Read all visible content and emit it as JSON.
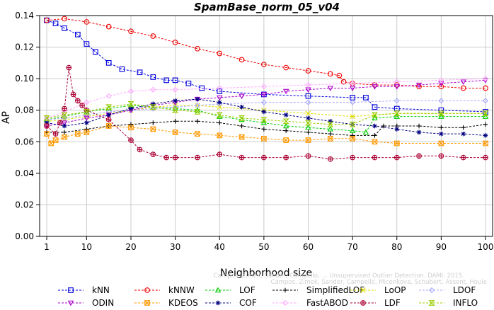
{
  "chart_data": {
    "type": "line",
    "title": "SpamBase_norm_05_v04",
    "xlabel": "Neighborhood size",
    "ylabel": "AP",
    "xlim": [
      1,
      100
    ],
    "ylim": [
      0,
      0.14
    ],
    "x_ticks": [
      1,
      10,
      20,
      30,
      40,
      50,
      60,
      70,
      80,
      90,
      100
    ],
    "y_ticks": [
      0.0,
      0.02,
      0.04,
      0.06,
      0.08,
      0.1,
      0.12,
      0.14
    ],
    "x_tick_labels": [
      "1",
      "10",
      "20",
      "30",
      "40",
      "50",
      "60",
      "70",
      "80",
      "90",
      "100"
    ],
    "y_tick_labels": [
      "0.00",
      "0.02",
      "0.04",
      "0.06",
      "0.08",
      "0.10",
      "0.12",
      "0.14"
    ],
    "legend_placement": "bottom",
    "credit_line_1": "Campos, Zimek, Sander, Campello, ... Unsupervised Outlier Detection. DAMI, 2015.",
    "credit_line_2": "Campos, Zimek, Sander, Campello, Micenkova, Schubert, Assent, Houle",
    "series": [
      {
        "name": "kNN",
        "color": "#0000dd",
        "marker": "square",
        "x": [
          1,
          3,
          5,
          8,
          10,
          12,
          15,
          18,
          22,
          25,
          28,
          30,
          33,
          36,
          40,
          50,
          60,
          70,
          73,
          75,
          80,
          90,
          100
        ],
        "y": [
          0.137,
          0.135,
          0.132,
          0.128,
          0.122,
          0.117,
          0.11,
          0.106,
          0.104,
          0.101,
          0.099,
          0.099,
          0.097,
          0.094,
          0.092,
          0.09,
          0.089,
          0.088,
          0.088,
          0.082,
          0.081,
          0.08,
          0.079
        ]
      },
      {
        "name": "kNNW",
        "color": "#ee0000",
        "marker": "circle",
        "x": [
          1,
          5,
          10,
          15,
          20,
          25,
          30,
          35,
          40,
          45,
          50,
          55,
          60,
          65,
          67,
          68,
          70,
          75,
          80,
          85,
          90,
          95,
          100
        ],
        "y": [
          0.137,
          0.138,
          0.136,
          0.133,
          0.13,
          0.127,
          0.123,
          0.119,
          0.116,
          0.112,
          0.109,
          0.107,
          0.105,
          0.103,
          0.102,
          0.098,
          0.097,
          0.096,
          0.096,
          0.095,
          0.095,
          0.094,
          0.094
        ]
      },
      {
        "name": "LOF",
        "color": "#00cc00",
        "marker": "triangle-up",
        "x": [
          1,
          5,
          10,
          15,
          20,
          25,
          30,
          35,
          40,
          45,
          50,
          55,
          60,
          65,
          70,
          73,
          75,
          80,
          90,
          100
        ],
        "y": [
          0.074,
          0.076,
          0.079,
          0.081,
          0.083,
          0.082,
          0.081,
          0.08,
          0.076,
          0.074,
          0.072,
          0.07,
          0.069,
          0.068,
          0.067,
          0.066,
          0.075,
          0.076,
          0.076,
          0.076
        ]
      },
      {
        "name": "SimplifiedLOF",
        "color": "#000000",
        "marker": "plus",
        "x": [
          1,
          5,
          10,
          15,
          20,
          25,
          30,
          35,
          40,
          45,
          50,
          55,
          60,
          65,
          70,
          75,
          77,
          80,
          85,
          90,
          95,
          100
        ],
        "y": [
          0.066,
          0.066,
          0.068,
          0.07,
          0.071,
          0.072,
          0.073,
          0.073,
          0.072,
          0.07,
          0.068,
          0.067,
          0.066,
          0.065,
          0.064,
          0.064,
          0.07,
          0.07,
          0.07,
          0.069,
          0.069,
          0.071
        ]
      },
      {
        "name": "LoOP",
        "color": "#dddd00",
        "marker": "cross",
        "x": [
          1,
          5,
          10,
          15,
          20,
          25,
          30,
          35,
          40,
          50,
          60,
          70,
          75,
          80,
          90,
          100
        ],
        "y": [
          0.073,
          0.074,
          0.076,
          0.078,
          0.08,
          0.082,
          0.083,
          0.083,
          0.082,
          0.08,
          0.078,
          0.076,
          0.077,
          0.078,
          0.078,
          0.078
        ]
      },
      {
        "name": "LDOF",
        "color": "#aaaaff",
        "marker": "diamond",
        "x": [
          1,
          5,
          10,
          15,
          20,
          25,
          30,
          35,
          40,
          50,
          60,
          70,
          80,
          90,
          100
        ],
        "y": [
          0.074,
          0.075,
          0.077,
          0.079,
          0.08,
          0.081,
          0.082,
          0.083,
          0.084,
          0.085,
          0.085,
          0.085,
          0.086,
          0.086,
          0.086
        ]
      },
      {
        "name": "ODIN",
        "color": "#aa00cc",
        "marker": "triangle-down",
        "x": [
          1,
          5,
          10,
          15,
          20,
          25,
          30,
          35,
          40,
          45,
          50,
          55,
          60,
          65,
          70,
          75,
          80,
          85,
          90,
          95,
          100
        ],
        "y": [
          0.07,
          0.072,
          0.075,
          0.077,
          0.08,
          0.083,
          0.085,
          0.087,
          0.088,
          0.089,
          0.09,
          0.092,
          0.093,
          0.094,
          0.094,
          0.095,
          0.095,
          0.096,
          0.097,
          0.098,
          0.099
        ]
      },
      {
        "name": "KDEOS",
        "color": "#ff9900",
        "marker": "square-x",
        "x": [
          1,
          2,
          3,
          5,
          8,
          10,
          15,
          20,
          25,
          30,
          35,
          40,
          45,
          50,
          55,
          60,
          65,
          70,
          75,
          80,
          90,
          100
        ],
        "y": [
          0.065,
          0.059,
          0.061,
          0.063,
          0.065,
          0.066,
          0.07,
          0.069,
          0.068,
          0.066,
          0.065,
          0.064,
          0.063,
          0.062,
          0.061,
          0.061,
          0.062,
          0.062,
          0.06,
          0.059,
          0.059,
          0.059
        ]
      },
      {
        "name": "COF",
        "color": "#000080",
        "marker": "asterisk",
        "x": [
          1,
          5,
          10,
          15,
          20,
          25,
          30,
          35,
          40,
          45,
          50,
          55,
          60,
          65,
          70,
          75,
          80,
          85,
          90,
          95,
          100
        ],
        "y": [
          0.072,
          0.07,
          0.072,
          0.077,
          0.081,
          0.084,
          0.086,
          0.087,
          0.085,
          0.082,
          0.079,
          0.077,
          0.075,
          0.073,
          0.071,
          0.07,
          0.068,
          0.066,
          0.065,
          0.065,
          0.064
        ]
      },
      {
        "name": "FastABOD",
        "color": "#ffaaff",
        "marker": "diamond",
        "x": [
          1,
          5,
          10,
          15,
          20,
          25,
          30,
          40,
          50,
          60,
          70,
          80,
          90,
          100
        ],
        "y": [
          0.075,
          0.079,
          0.085,
          0.089,
          0.092,
          0.093,
          0.093,
          0.094,
          0.095,
          0.096,
          0.097,
          0.098,
          0.099,
          0.1
        ]
      },
      {
        "name": "LDF",
        "color": "#aa0033",
        "marker": "circle-plus",
        "x": [
          1,
          3,
          4,
          5,
          6,
          7,
          8,
          9,
          10,
          15,
          20,
          22,
          25,
          28,
          30,
          35,
          40,
          45,
          50,
          55,
          60,
          65,
          70,
          75,
          80,
          85,
          90,
          95,
          100
        ],
        "y": [
          0.07,
          0.065,
          0.072,
          0.081,
          0.107,
          0.09,
          0.086,
          0.083,
          0.08,
          0.074,
          0.061,
          0.055,
          0.052,
          0.05,
          0.05,
          0.05,
          0.052,
          0.05,
          0.05,
          0.05,
          0.051,
          0.049,
          0.05,
          0.05,
          0.05,
          0.051,
          0.051,
          0.05,
          0.05
        ]
      },
      {
        "name": "INFLO",
        "color": "#99cc00",
        "marker": "hourglass",
        "x": [
          1,
          5,
          10,
          15,
          20,
          25,
          30,
          35,
          40,
          45,
          50,
          55,
          60,
          65,
          70,
          75,
          80,
          90,
          100
        ],
        "y": [
          0.075,
          0.077,
          0.079,
          0.082,
          0.084,
          0.082,
          0.08,
          0.079,
          0.077,
          0.075,
          0.074,
          0.073,
          0.072,
          0.071,
          0.071,
          0.077,
          0.078,
          0.078,
          0.078
        ]
      }
    ]
  }
}
